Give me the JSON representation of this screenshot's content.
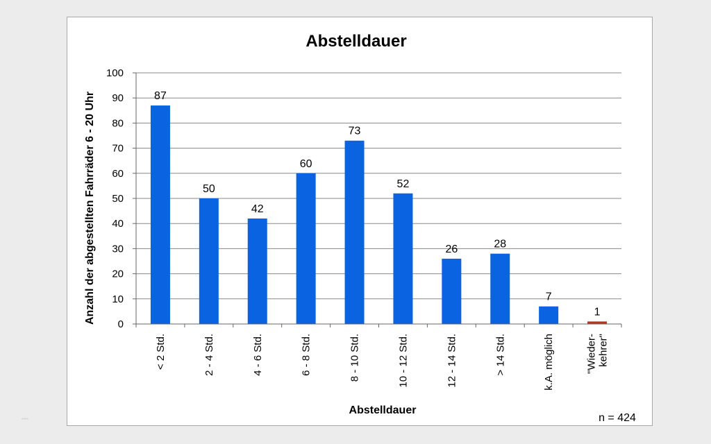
{
  "chart_data": {
    "type": "bar",
    "title": "Abstelldauer",
    "xlabel": "Abstelldauer",
    "ylabel": "Anzahl der abgestellten Fahrräder 6 - 20 Uhr",
    "ylim": [
      0,
      100
    ],
    "yticks": [
      0,
      10,
      20,
      30,
      40,
      50,
      60,
      70,
      80,
      90,
      100
    ],
    "grid": true,
    "categories": [
      "< 2 Std.",
      "2 - 4 Std.",
      "4 - 6 Std.",
      "6 - 8 Std.",
      "8 - 10 Std.",
      "10 - 12 Std.",
      "12 - 14 Std.",
      "> 14 Std.",
      "k.A. möglich",
      "\"Wieder-\nkehrer\""
    ],
    "values": [
      87,
      50,
      42,
      60,
      73,
      52,
      26,
      28,
      7,
      1
    ],
    "bar_colors": [
      "#0a63e0",
      "#0a63e0",
      "#0a63e0",
      "#0a63e0",
      "#0a63e0",
      "#0a63e0",
      "#0a63e0",
      "#0a63e0",
      "#0a63e0",
      "#b5351f"
    ],
    "note": "n = 424"
  }
}
